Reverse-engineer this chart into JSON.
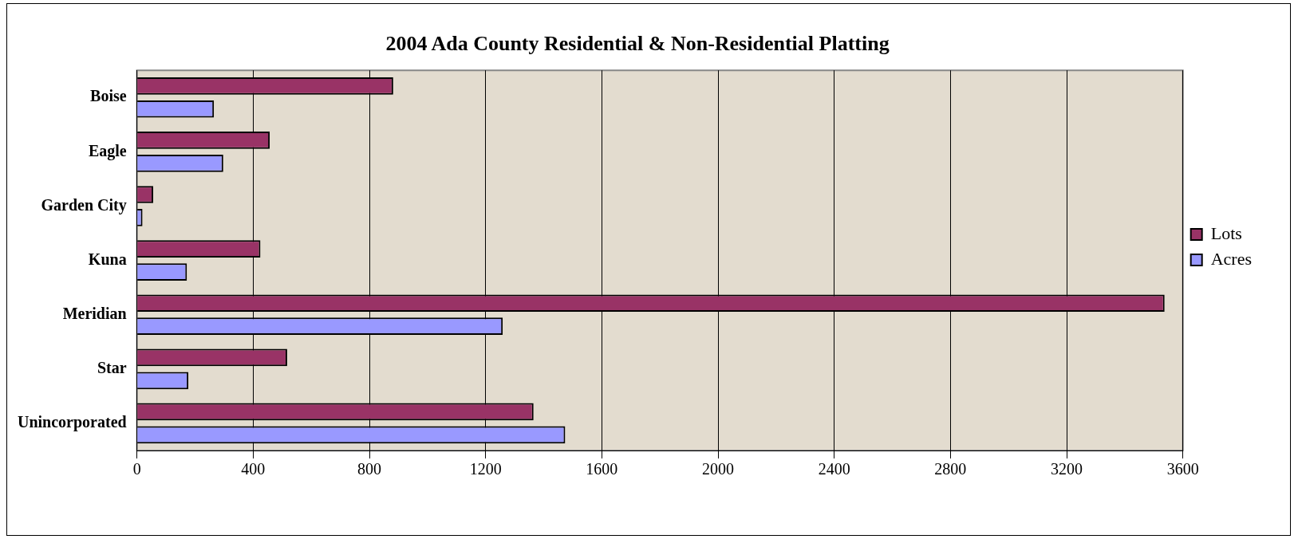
{
  "chart_data": {
    "type": "bar",
    "orientation": "horizontal",
    "title": "2004 Ada County Residential & Non-Residential Platting",
    "categories": [
      "Boise",
      "Eagle",
      "Garden City",
      "Kuna",
      "Meridian",
      "Star",
      "Unincorporated"
    ],
    "series": [
      {
        "name": "Lots",
        "color": "#993366",
        "values": [
          882,
          457,
          56,
          425,
          3537,
          517,
          1365
        ]
      },
      {
        "name": "Acres",
        "color": "#9999ff",
        "values": [
          265,
          297,
          19,
          172,
          1259,
          177,
          1474
        ]
      }
    ],
    "xlim": [
      0,
      3600
    ],
    "xticks": [
      0,
      400,
      800,
      1200,
      1600,
      2000,
      2400,
      2800,
      3200,
      3600
    ],
    "grid": "x",
    "legend": "right"
  }
}
